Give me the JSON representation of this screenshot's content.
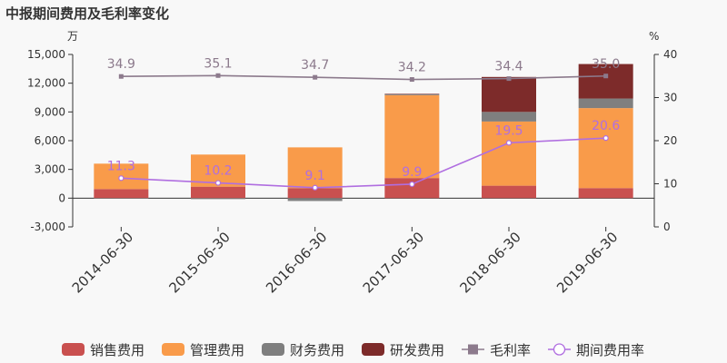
{
  "chart_data": {
    "type": "bar",
    "title": "中报期间费用及毛利率变化",
    "left_unit": "万",
    "right_unit": "%",
    "categories": [
      "2014-06-30",
      "2015-06-30",
      "2016-06-30",
      "2017-06-30",
      "2018-06-30",
      "2019-06-30"
    ],
    "left_axis": {
      "min": -3000,
      "max": 15000,
      "ticks": [
        "-3,000",
        "0",
        "3,000",
        "6,000",
        "9,000",
        "12,000",
        "15,000"
      ]
    },
    "right_axis": {
      "min": 0,
      "max": 40,
      "ticks": [
        "0",
        "10",
        "20",
        "30",
        "40"
      ]
    },
    "bar_series": [
      {
        "name": "销售费用",
        "color": "#c9504f",
        "values": [
          950,
          1200,
          1050,
          2100,
          1300,
          1050
        ]
      },
      {
        "name": "管理费用",
        "color": "#f99b4a",
        "values": [
          2650,
          3350,
          4250,
          8650,
          6700,
          8350
        ]
      },
      {
        "name": "财务费用",
        "color": "#7f7f7f",
        "values": [
          -50,
          -100,
          -300,
          100,
          1000,
          1000
        ]
      },
      {
        "name": "研发费用",
        "color": "#7d2b2a",
        "values": [
          0,
          0,
          0,
          50,
          3650,
          3600
        ]
      }
    ],
    "line_series": [
      {
        "name": "毛利率",
        "color": "#8c7a8c",
        "marker": "square",
        "values": [
          34.9,
          35.1,
          34.7,
          34.2,
          34.4,
          35.0
        ],
        "labels": [
          "34.9",
          "35.1",
          "34.7",
          "34.2",
          "34.4",
          "35.0"
        ]
      },
      {
        "name": "期间费用率",
        "color": "#b06ee0",
        "marker": "circle",
        "values": [
          11.3,
          10.2,
          9.1,
          9.9,
          19.5,
          20.6
        ],
        "labels": [
          "11.3",
          "10.2",
          "9.1",
          "9.9",
          "19.5",
          "20.6"
        ]
      }
    ],
    "legend_placement": "bottom",
    "grid": false
  }
}
